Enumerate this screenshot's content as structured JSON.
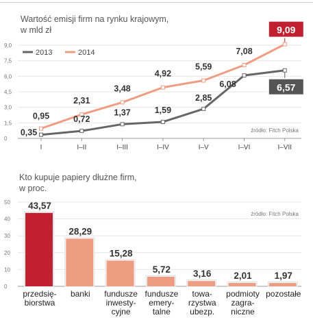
{
  "chart_data": [
    {
      "type": "line",
      "title": "Wartość emisji firm na rynku krajowym,",
      "subtitle": "w mld zł",
      "source": "źródło: Fitch Polska",
      "categories": [
        "I",
        "I–II",
        "I–III",
        "I–IV",
        "I–V",
        "I–VI",
        "I–VII"
      ],
      "yticks": [
        "0",
        "1,5",
        "3,0",
        "4,5",
        "6,0",
        "7,5",
        "9,0"
      ],
      "ylim": [
        0,
        9.0
      ],
      "legend_position": "top-left",
      "series": [
        {
          "name": "2013",
          "color": "#666666",
          "values": [
            0.35,
            0.72,
            1.37,
            1.59,
            2.85,
            6.08,
            6.57
          ],
          "labels": [
            "0,35",
            "0,72",
            "1,37",
            "1,59",
            "2,85",
            "6,08",
            "6,57"
          ]
        },
        {
          "name": "2014",
          "color": "#ee9c82",
          "values": [
            0.95,
            2.31,
            3.48,
            4.92,
            5.59,
            7.08,
            9.09
          ],
          "labels": [
            "0,95",
            "2,31",
            "3,48",
            "4,92",
            "5,59",
            "7,08",
            "9,09"
          ]
        }
      ],
      "highlight_colors": {
        "2013": "#555555",
        "2014": "#c0202f"
      }
    },
    {
      "type": "bar",
      "title": "Kto kupuje papiery dłużne firm,",
      "subtitle": "w proc.",
      "source": "źródło: Fitch Polska",
      "yticks": [
        "0",
        "10",
        "20",
        "30",
        "40",
        "50"
      ],
      "ylim": [
        0,
        50
      ],
      "categories": [
        [
          "przedsię-",
          "biorstwa"
        ],
        [
          "banki"
        ],
        [
          "fundusze",
          "inwesty-",
          "cyjne"
        ],
        [
          "fundusze",
          "emery-",
          "talne"
        ],
        [
          "towa-",
          "rzystwa",
          "ubezp."
        ],
        [
          "podmioty",
          "zagra-",
          "niczne"
        ],
        [
          "pozostałe"
        ]
      ],
      "values": [
        43.57,
        28.29,
        15.28,
        5.72,
        3.16,
        2.01,
        1.97
      ],
      "labels": [
        "43,57",
        "28,29",
        "15,28",
        "5,72",
        "3,16",
        "2,01",
        "1,97"
      ],
      "colors": [
        "#c0202f",
        "#ee9c82",
        "#ee9c82",
        "#ee9c82",
        "#ee9c82",
        "#ee9c82",
        "#ee9c82"
      ]
    }
  ]
}
